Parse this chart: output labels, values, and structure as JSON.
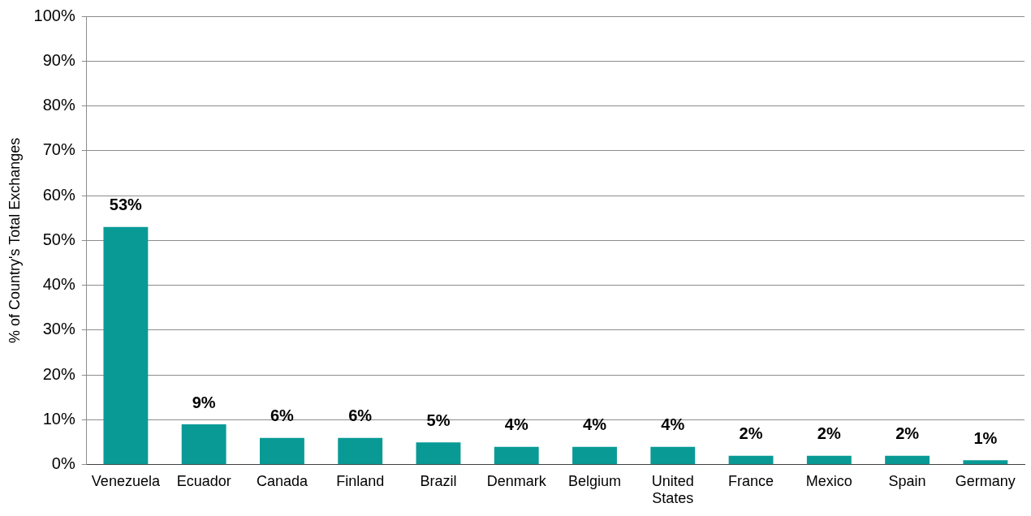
{
  "chart_data": {
    "type": "bar",
    "ylabel": "% of Country's Total Exchanges",
    "categories": [
      "Venezuela",
      "Ecuador",
      "Canada",
      "Finland",
      "Brazil",
      "Denmark",
      "Belgium",
      "United States",
      "France",
      "Mexico",
      "Spain",
      "Germany"
    ],
    "values": [
      53,
      9,
      6,
      6,
      5,
      4,
      4,
      4,
      2,
      2,
      2,
      1
    ],
    "value_labels": [
      "53%",
      "9%",
      "6%",
      "6%",
      "5%",
      "4%",
      "4%",
      "4%",
      "2%",
      "2%",
      "2%",
      "1%"
    ],
    "color": "#0a9a96",
    "ylim": [
      0,
      100
    ],
    "yticks": [
      {
        "value": 0,
        "label": "0%"
      },
      {
        "value": 10,
        "label": "10%"
      },
      {
        "value": 20,
        "label": "20%"
      },
      {
        "value": 30,
        "label": "30%"
      },
      {
        "value": 40,
        "label": "40%"
      },
      {
        "value": 50,
        "label": "50%"
      },
      {
        "value": 60,
        "label": "60%"
      },
      {
        "value": 70,
        "label": "70%"
      },
      {
        "value": 80,
        "label": "80%"
      },
      {
        "value": 90,
        "label": "90%"
      },
      {
        "value": 100,
        "label": "100%"
      }
    ],
    "grid": "y",
    "legend": false
  }
}
